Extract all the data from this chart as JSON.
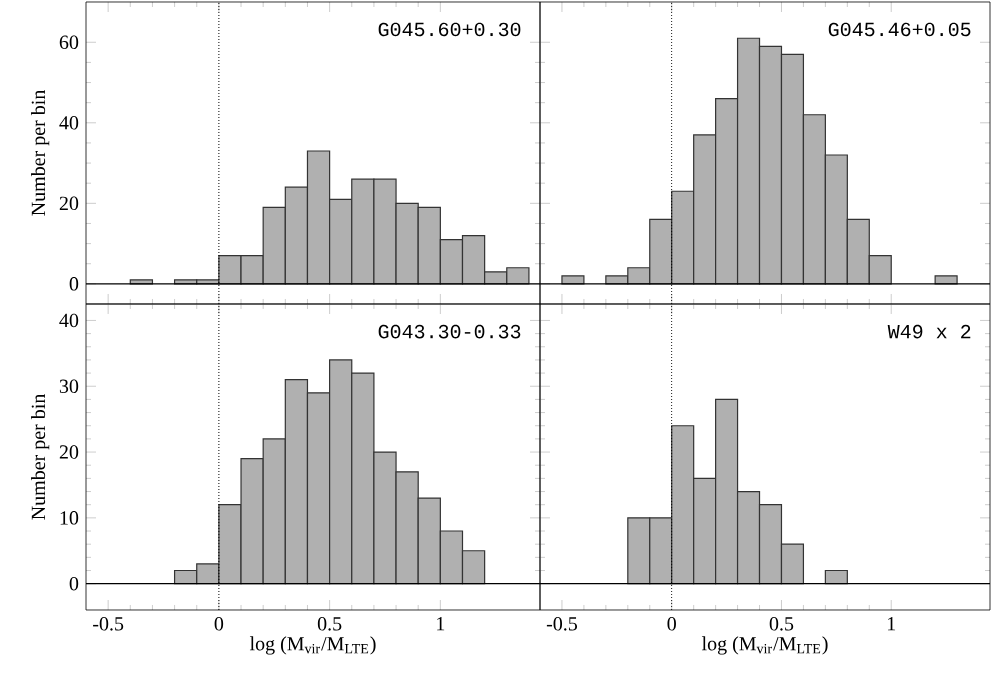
{
  "chart_data": [
    {
      "type": "histogram",
      "bins": [
        -0.4,
        -0.3,
        -0.2,
        -0.1,
        0,
        0.1,
        0.2,
        0.3,
        0.4,
        0.5,
        0.6,
        0.7,
        0.8,
        0.9,
        1.0,
        1.1,
        1.2,
        1.3,
        1.4
      ],
      "values": [
        1,
        0,
        1,
        1,
        7,
        7,
        19,
        24,
        33,
        21,
        26,
        26,
        20,
        19,
        11,
        12,
        3,
        4
      ],
      "color": "#b0b0b0",
      "xlim": [
        -0.6,
        1.45
      ],
      "ylim": [
        -5,
        70
      ],
      "xticks": [
        -0.5,
        0,
        0.5,
        1
      ],
      "yticks": [
        0,
        20,
        40,
        60
      ],
      "ylabel": "Number per bin",
      "annotations": [
        "G045.60+0.30"
      ],
      "ref_lines": [
        {
          "axis": "x",
          "value": 0,
          "line_style": "dotted"
        },
        {
          "axis": "y",
          "value": 0,
          "line_style": "solid"
        }
      ],
      "tick_labels": "y"
    },
    {
      "type": "histogram",
      "bins": [
        -0.5,
        -0.4,
        -0.3,
        -0.2,
        -0.1,
        0,
        0.1,
        0.2,
        0.3,
        0.4,
        0.5,
        0.6,
        0.7,
        0.8,
        0.9,
        1.0,
        1.1,
        1.2,
        1.3
      ],
      "values": [
        2,
        0,
        2,
        4,
        16,
        23,
        37,
        46,
        61,
        59,
        57,
        42,
        32,
        16,
        7,
        0,
        0,
        2
      ],
      "color": "#b0b0b0",
      "xlim": [
        -0.6,
        1.45
      ],
      "ylim": [
        -5,
        70
      ],
      "xticks": [
        -0.5,
        0,
        0.5,
        1
      ],
      "yticks": [
        0,
        20,
        40,
        60
      ],
      "annotations": [
        "G045.46+0.05"
      ],
      "ref_lines": [
        {
          "axis": "x",
          "value": 0,
          "line_style": "dotted"
        },
        {
          "axis": "y",
          "value": 0,
          "line_style": "solid"
        }
      ],
      "tick_labels": false
    },
    {
      "type": "histogram",
      "bins": [
        -0.2,
        -0.1,
        0,
        0.1,
        0.2,
        0.3,
        0.4,
        0.5,
        0.6,
        0.7,
        0.8,
        0.9,
        1.0,
        1.1,
        1.2
      ],
      "values": [
        2,
        3,
        12,
        19,
        22,
        31,
        29,
        34,
        32,
        20,
        17,
        13,
        8,
        5
      ],
      "color": "#b0b0b0",
      "xlim": [
        -0.6,
        1.45
      ],
      "ylim": [
        -4,
        42.5
      ],
      "xticks": [
        -0.5,
        0,
        0.5,
        1
      ],
      "yticks": [
        0,
        10,
        20,
        30,
        40
      ],
      "xlabel": "log (M$_{vir}$/M$_{LTE}$)",
      "ylabel": "Number per bin",
      "annotations": [
        "G043.30-0.33"
      ],
      "ref_lines": [
        {
          "axis": "x",
          "value": 0,
          "line_style": "dotted"
        },
        {
          "axis": "y",
          "value": 0,
          "line_style": "solid"
        }
      ]
    },
    {
      "type": "histogram",
      "bins": [
        -0.2,
        -0.1,
        0,
        0.1,
        0.2,
        0.3,
        0.4,
        0.5,
        0.6,
        0.7,
        0.8
      ],
      "values": [
        10,
        10,
        24,
        16,
        28,
        14,
        12,
        6,
        0,
        2
      ],
      "color": "#b0b0b0",
      "xlim": [
        -0.6,
        1.45
      ],
      "ylim": [
        -4,
        42.5
      ],
      "xticks": [
        -0.5,
        0,
        0.5,
        1
      ],
      "yticks": [
        0,
        10,
        20,
        30,
        40
      ],
      "xlabel": "log (M$_{vir}$/M$_{LTE}$)",
      "annotations": [
        "W49 x 2"
      ],
      "ref_lines": [
        {
          "axis": "x",
          "value": 0,
          "line_style": "dotted"
        },
        {
          "axis": "y",
          "value": 0,
          "line_style": "solid"
        }
      ],
      "tick_labels": "x"
    }
  ]
}
